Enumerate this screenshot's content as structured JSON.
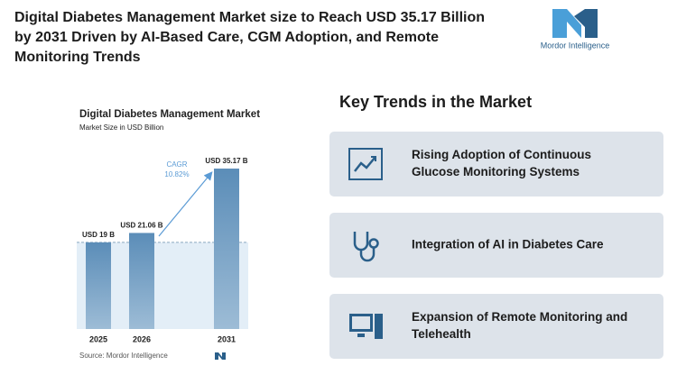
{
  "header": {
    "title_lines": [
      "Digital Diabetes Management Market size to Reach USD 35.17 Billion",
      "by 2031 Driven by AI-Based Care, CGM Adoption, and Remote",
      "Monitoring Trends"
    ]
  },
  "logo": {
    "text": "Mordor Intelligence"
  },
  "chart_data": {
    "type": "bar",
    "title": "Digital Diabetes Management Market",
    "subtitle": "Market Size in USD Billion",
    "categories": [
      "2025",
      "2026",
      "2031"
    ],
    "values": [
      19,
      21.06,
      35.17
    ],
    "value_labels": [
      "USD 19 B",
      "USD 21.06 B",
      "USD 35.17 B"
    ],
    "color": "#5b8db8",
    "cagr": {
      "label": "CAGR",
      "value": "10.82%"
    },
    "source": "Source: Mordor Intelligence"
  },
  "trends": {
    "title": "Key Trends in the Market",
    "items": [
      {
        "lines": [
          "Rising Adoption of Continuous",
          "Glucose Monitoring Systems"
        ]
      },
      {
        "lines": [
          "Integration of AI in Diabetes Care"
        ]
      },
      {
        "lines": [
          "Expansion of Remote Monitoring and",
          "Telehealth"
        ]
      }
    ]
  }
}
